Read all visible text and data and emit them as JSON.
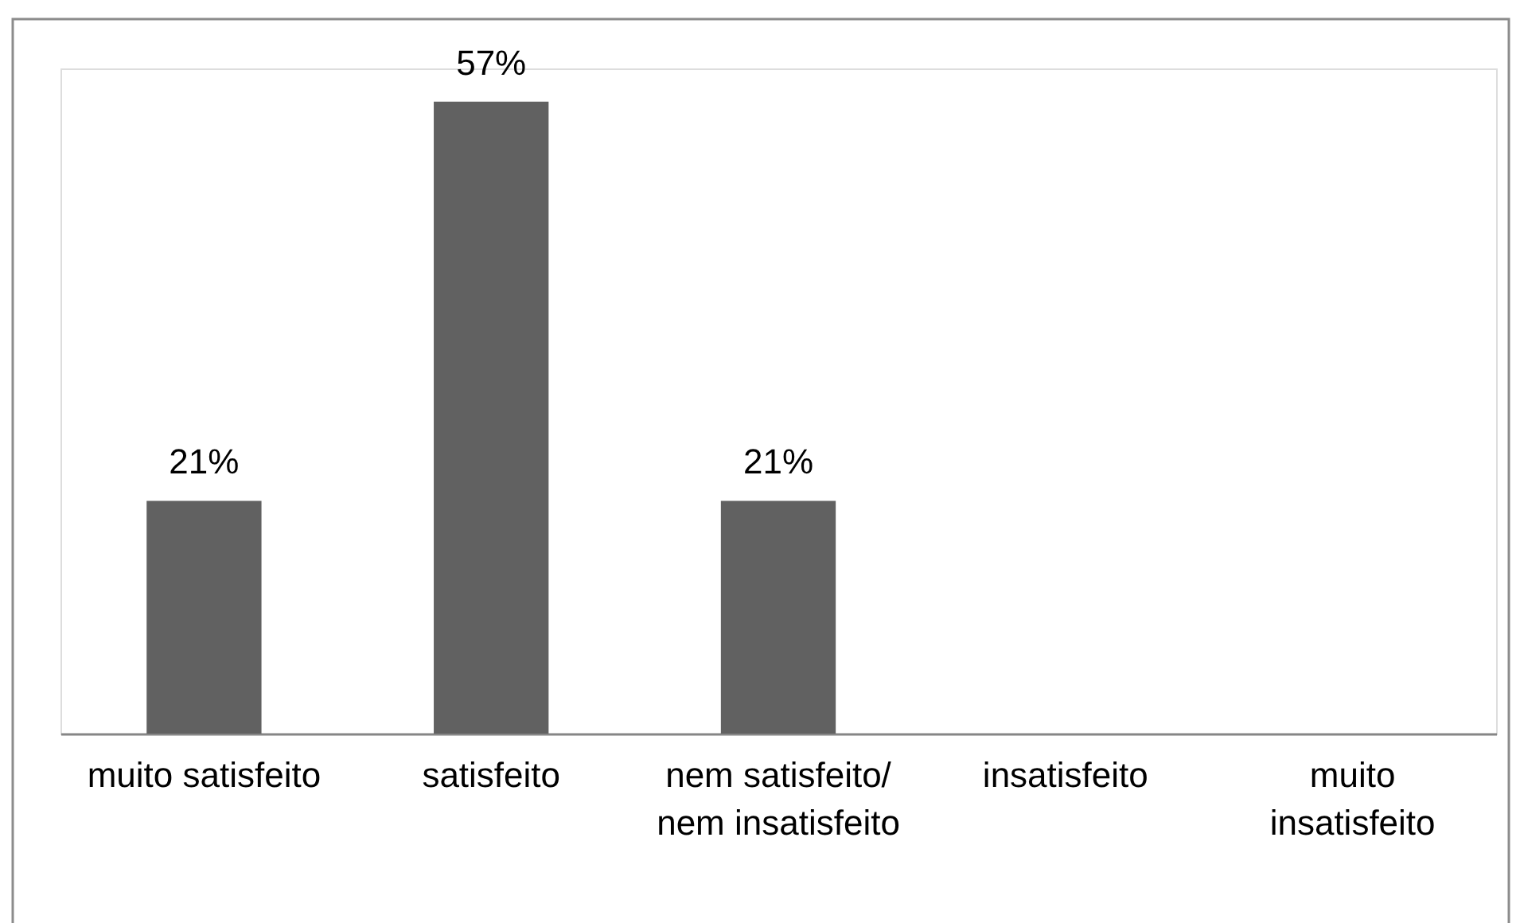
{
  "chart_data": {
    "type": "bar",
    "categories": [
      "muito satisfeito",
      "satisfeito",
      "nem satisfeito/ nem insatisfeito",
      "insatisfeito",
      "muito insatisfeito"
    ],
    "values": [
      21,
      57,
      21,
      0,
      0
    ],
    "color": "#616161",
    "value_labels": [
      "21%",
      "57%",
      "21%",
      null,
      null
    ],
    "tick_labels": "x"
  }
}
